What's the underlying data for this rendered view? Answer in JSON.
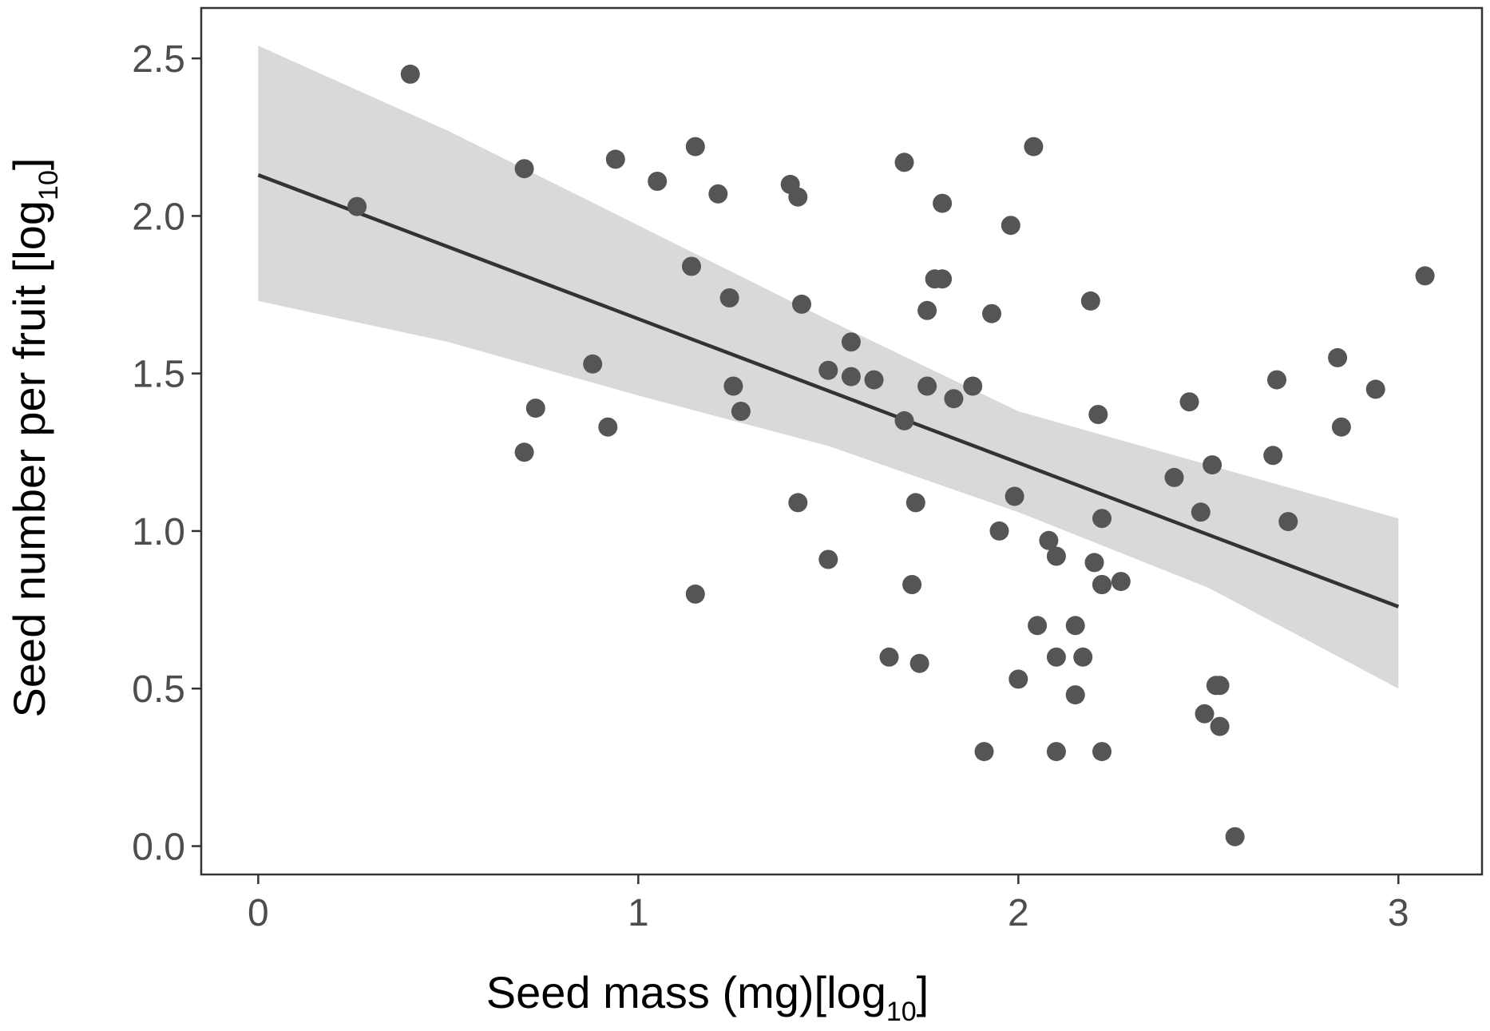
{
  "chart_data": {
    "type": "scatter",
    "xlabel": "Seed mass (mg)[log",
    "xlabel_subscript": "10",
    "xlabel_close": "]",
    "ylabel": "Seed number per fruit [log",
    "ylabel_subscript": "10",
    "ylabel_close": "]",
    "xlim": [
      -0.15,
      3.22
    ],
    "ylim": [
      -0.09,
      2.66
    ],
    "x_ticks": [
      0,
      1,
      2,
      3
    ],
    "x_tick_labels": [
      "0",
      "1",
      "2",
      "3"
    ],
    "y_ticks": [
      0.0,
      0.5,
      1.0,
      1.5,
      2.0,
      2.5
    ],
    "y_tick_labels": [
      "0.0",
      "0.5",
      "1.0",
      "1.5",
      "2.0",
      "2.5"
    ],
    "grid": false,
    "colors": {
      "points": "#555555",
      "line": "#333333",
      "band": "#d9d9d9",
      "frame": "#333333"
    },
    "series": [
      {
        "x": [
          0.26,
          0.4,
          0.7,
          0.7,
          0.73,
          0.88,
          0.92,
          0.94,
          1.05,
          1.14,
          1.15,
          1.15,
          1.21,
          1.24,
          1.25,
          1.27,
          1.4,
          1.42,
          1.42,
          1.43,
          1.5,
          1.5,
          1.56,
          1.56,
          1.62,
          1.66,
          1.7,
          1.7,
          1.72,
          1.73,
          1.74,
          1.76,
          1.76,
          1.78,
          1.8,
          1.8,
          1.83,
          1.88,
          1.91,
          1.93,
          1.95,
          1.98,
          1.99,
          2.0,
          2.04,
          2.05,
          2.08,
          2.1,
          2.1,
          2.1,
          2.15,
          2.15,
          2.17,
          2.19,
          2.2,
          2.21,
          2.22,
          2.22,
          2.22,
          2.22,
          2.27,
          2.41,
          2.45,
          2.48,
          2.49,
          2.51,
          2.52,
          2.53,
          2.53,
          2.57,
          2.67,
          2.68,
          2.71,
          2.84,
          2.85,
          2.94,
          3.07
        ],
        "y": [
          2.03,
          2.45,
          2.15,
          1.25,
          1.39,
          1.53,
          1.33,
          2.18,
          2.11,
          1.84,
          2.22,
          0.8,
          2.07,
          1.74,
          1.46,
          1.38,
          2.1,
          2.06,
          1.09,
          1.72,
          1.51,
          0.91,
          1.49,
          1.6,
          1.48,
          0.6,
          2.17,
          1.35,
          0.83,
          1.09,
          0.58,
          1.46,
          1.7,
          1.8,
          2.04,
          1.8,
          1.42,
          1.46,
          0.3,
          1.69,
          1.0,
          1.97,
          1.11,
          0.53,
          2.22,
          0.7,
          0.97,
          0.92,
          0.6,
          0.3,
          0.7,
          0.48,
          0.6,
          1.73,
          0.9,
          1.37,
          0.83,
          1.04,
          0.3,
          0.83,
          0.84,
          1.17,
          1.41,
          1.06,
          0.42,
          1.21,
          0.51,
          0.38,
          0.51,
          0.03,
          1.24,
          1.48,
          1.03,
          1.55,
          1.33,
          1.45,
          1.81
        ]
      }
    ],
    "fit_line": {
      "x": [
        0.0,
        3.0
      ],
      "y": [
        2.13,
        0.76
      ]
    },
    "confidence_band": {
      "x": [
        0.0,
        0.5,
        1.0,
        1.5,
        2.0,
        2.5,
        3.0
      ],
      "upper": [
        2.54,
        2.27,
        1.97,
        1.67,
        1.38,
        1.21,
        1.04
      ],
      "lower": [
        1.73,
        1.6,
        1.43,
        1.27,
        1.06,
        0.82,
        0.5
      ]
    }
  }
}
